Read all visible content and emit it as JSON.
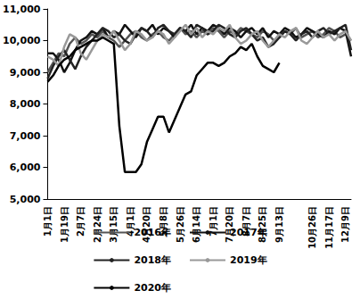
{
  "chart_data": {
    "type": "line",
    "categories": [
      "1月1日",
      null,
      null,
      "1月19日",
      null,
      null,
      "2月7日",
      null,
      null,
      "2月24日",
      null,
      null,
      "3月15日",
      null,
      null,
      "4月1日",
      null,
      null,
      "4月20日",
      null,
      null,
      "5月8日",
      null,
      null,
      "5月26日",
      null,
      null,
      "6月14日",
      null,
      null,
      "7月1日",
      null,
      null,
      "7月20日",
      null,
      null,
      "8月7日",
      null,
      null,
      "8月25日",
      null,
      null,
      "9月13日",
      null,
      null,
      null,
      null,
      null,
      "10月26日",
      null,
      null,
      "11月17日",
      null,
      null,
      "12月9日",
      null
    ],
    "series": [
      {
        "name": "2016年",
        "color": "#555555",
        "values": [
          9000,
          9300,
          9600,
          9500,
          9900,
          10100,
          9900,
          10000,
          10200,
          10100,
          10300,
          10100,
          10000,
          9800,
          10000,
          10200,
          10300,
          10100,
          10000,
          10200,
          10300,
          10100,
          10000,
          10200,
          10400,
          10200,
          10300,
          10100,
          10300,
          10200,
          10400,
          10300,
          10100,
          10300,
          10200,
          10400,
          10300,
          10200,
          10100,
          10300,
          10200,
          10000,
          10100,
          10300,
          10200,
          10400,
          10100,
          10200,
          10300,
          10100,
          10200,
          10400,
          10300,
          10100,
          10200,
          10000
        ]
      },
      {
        "name": "2017年",
        "color": "#111111",
        "values": [
          9600,
          9600,
          9400,
          9000,
          9300,
          9700,
          10000,
          10100,
          10300,
          10200,
          10400,
          10100,
          10300,
          10200,
          10500,
          10300,
          10100,
          10400,
          10300,
          10500,
          10200,
          10400,
          10300,
          10100,
          10400,
          10300,
          10500,
          10200,
          10400,
          10300,
          10500,
          10400,
          10200,
          10400,
          10300,
          10100,
          10300,
          10400,
          10200,
          10400,
          10100,
          10300,
          10200,
          10400,
          10300,
          10100,
          10200,
          10400,
          10300,
          10200,
          10100,
          10300,
          10200,
          10400,
          10300,
          9500
        ]
      },
      {
        "name": "2018年",
        "color": "#222222",
        "values": [
          8800,
          9200,
          9500,
          9700,
          9400,
          9100,
          9500,
          9800,
          10000,
          10200,
          10400,
          10300,
          10100,
          10200,
          10000,
          9900,
          10200,
          10400,
          10300,
          10100,
          10400,
          10500,
          10300,
          10200,
          10400,
          10300,
          10100,
          10500,
          10400,
          10200,
          10300,
          10500,
          10400,
          10200,
          10100,
          10300,
          10400,
          10200,
          10000,
          10100,
          9800,
          9900,
          10100,
          10300,
          10200,
          10000,
          10200,
          10300,
          10100,
          10300,
          10400,
          10200,
          10300,
          10400,
          10500,
          9700
        ]
      },
      {
        "name": "2019年",
        "color": "#999999",
        "values": [
          9500,
          9400,
          9200,
          9800,
          10200,
          10100,
          9600,
          9400,
          9700,
          10000,
          10200,
          10100,
          10300,
          10000,
          9700,
          9900,
          10300,
          10200,
          10000,
          10100,
          10300,
          10200,
          9900,
          10100,
          10300,
          10500,
          10200,
          10400,
          10100,
          10300,
          10200,
          10400,
          10300,
          10500,
          10100,
          9900,
          10000,
          10200,
          10300,
          10000,
          9800,
          10000,
          10200,
          10100,
          10300,
          10400,
          10000,
          9900,
          10100,
          10300,
          10100,
          10200,
          10000,
          10200,
          10300,
          10000
        ]
      },
      {
        "name": "2020年",
        "color": "#000000",
        "values": [
          8700,
          8900,
          9200,
          9400,
          9500,
          9700,
          9800,
          9900,
          10000,
          10000,
          10100,
          10000,
          9900,
          7300,
          5850,
          5850,
          5850,
          6100,
          6800,
          7200,
          7600,
          7600,
          7100,
          7500,
          7900,
          8300,
          8400,
          8900,
          9100,
          9300,
          9300,
          9200,
          9300,
          9500,
          9600,
          9800,
          9700,
          9900,
          9500,
          9200,
          9100,
          9000,
          9300,
          null,
          null,
          null,
          null,
          null,
          null,
          null,
          null,
          null,
          null,
          null,
          null,
          null
        ]
      }
    ],
    "ylim": [
      5000,
      11000
    ],
    "yticks": [
      5000,
      6000,
      7000,
      8000,
      9000,
      10000,
      11000
    ],
    "grid": false,
    "legend": "bottom"
  }
}
